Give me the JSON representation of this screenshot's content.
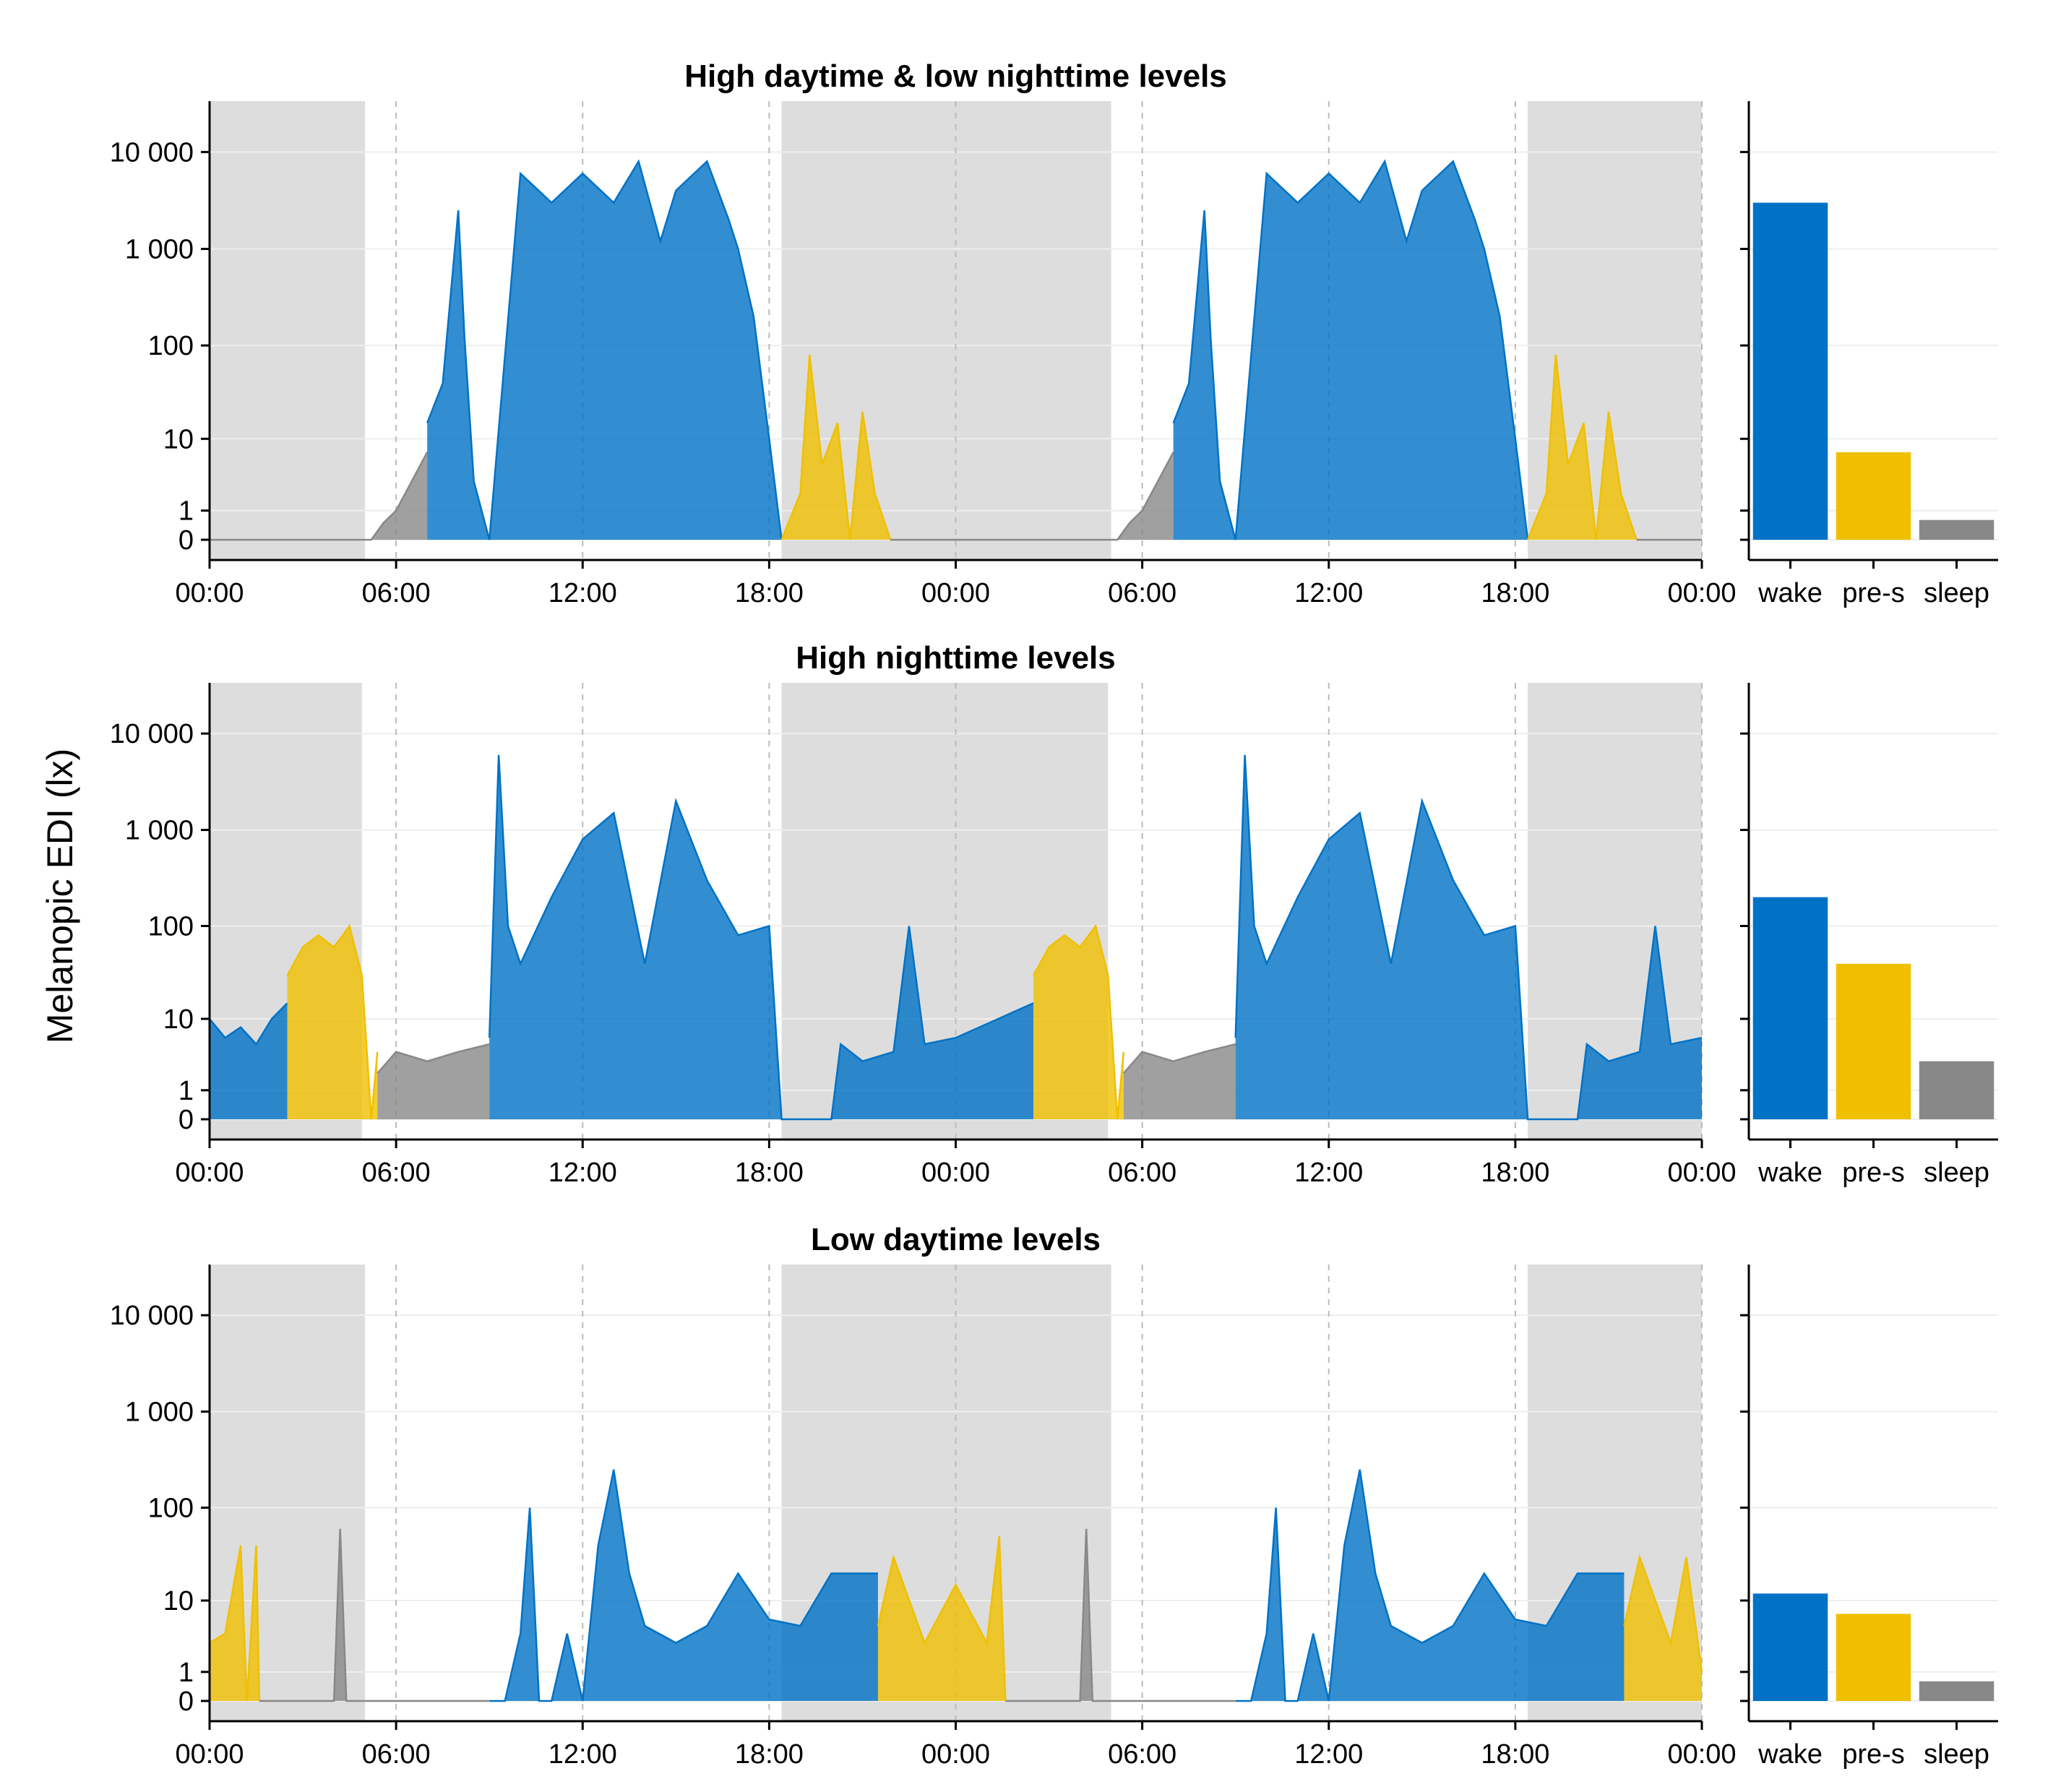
{
  "figure": {
    "ylabel": "Melanopic EDI (lx)"
  },
  "colors": {
    "wake": "#0072C6",
    "pre_sleep": "#F0C000",
    "sleep": "#888888",
    "night_shade": "#DDDDDD",
    "gridline": "#EEEEEE",
    "dashed_gridline": "#BBBBBB"
  },
  "chart_data": [
    {
      "type": "area",
      "title": "High daytime & low nighttime levels",
      "scale": "symlog",
      "xlabel": "",
      "ylabel": "",
      "x_unit": "hours",
      "xlim": [
        0,
        48
      ],
      "x_ticks": [
        0,
        6,
        12,
        18,
        24,
        30,
        36,
        42,
        48
      ],
      "x_tick_labels": [
        "00:00",
        "06:00",
        "12:00",
        "18:00",
        "00:00",
        "06:00",
        "12:00",
        "18:00",
        "00:00"
      ],
      "y_ticks": [
        0,
        1,
        10,
        100,
        1000,
        10000
      ],
      "y_tick_labels": [
        "0",
        "1",
        "10",
        "100",
        "1 000",
        "10 000"
      ],
      "night_periods": [
        [
          0,
          5
        ],
        [
          18.4,
          29
        ],
        [
          42.4,
          48
        ]
      ],
      "series": [
        {
          "state": "sleep",
          "x": [
            0,
            5.2,
            5.6,
            6.0,
            6.5,
            7.0
          ],
          "values": [
            0,
            0,
            0.5,
            1,
            3,
            7
          ]
        },
        {
          "state": "wake",
          "x": [
            7.0,
            7.5,
            8.0,
            8.2,
            8.5,
            9.0,
            10,
            11,
            12,
            13,
            13.8,
            14.5,
            15,
            16,
            16.7,
            17,
            17.5,
            18.0,
            18.4
          ],
          "values": [
            15,
            40,
            2500,
            120,
            3,
            0,
            6000,
            3000,
            6000,
            3000,
            8000,
            1200,
            4000,
            8000,
            2000,
            1000,
            200,
            10,
            0
          ]
        },
        {
          "state": "pre-sleep",
          "x": [
            18.4,
            19.0,
            19.3,
            19.7,
            20.2,
            20.6,
            21.0,
            21.4,
            21.9
          ],
          "values": [
            0,
            2,
            80,
            5,
            15,
            0,
            20,
            2,
            0
          ]
        },
        {
          "state": "sleep",
          "x": [
            21.9,
            29.2,
            29.6,
            30.0,
            30.5,
            31.0
          ],
          "values": [
            0,
            0,
            0.5,
            1,
            3,
            7
          ]
        },
        {
          "state": "wake",
          "x": [
            31.0,
            31.5,
            32.0,
            32.2,
            32.5,
            33.0,
            34,
            35,
            36,
            37,
            37.8,
            38.5,
            39,
            40,
            40.7,
            41,
            41.5,
            42.0,
            42.4
          ],
          "values": [
            15,
            40,
            2500,
            120,
            3,
            0,
            6000,
            3000,
            6000,
            3000,
            8000,
            1200,
            4000,
            8000,
            2000,
            1000,
            200,
            10,
            0
          ]
        },
        {
          "state": "pre-sleep",
          "x": [
            42.4,
            43.0,
            43.3,
            43.7,
            44.2,
            44.6,
            45.0,
            45.4,
            45.9
          ],
          "values": [
            0,
            2,
            80,
            5,
            15,
            0,
            20,
            2,
            0
          ]
        },
        {
          "state": "sleep",
          "x": [
            45.9,
            48
          ],
          "values": [
            0,
            0
          ]
        }
      ],
      "summary": {
        "categories": [
          "wake",
          "pre-s",
          "sleep"
        ],
        "values": [
          3000,
          7,
          0.6
        ]
      }
    },
    {
      "type": "area",
      "title": "High nighttime levels",
      "scale": "symlog",
      "xlabel": "",
      "ylabel": "",
      "x_unit": "hours",
      "xlim": [
        0,
        48
      ],
      "x_ticks": [
        0,
        6,
        12,
        18,
        24,
        30,
        36,
        42,
        48
      ],
      "x_tick_labels": [
        "00:00",
        "06:00",
        "12:00",
        "18:00",
        "00:00",
        "06:00",
        "12:00",
        "18:00",
        "00:00"
      ],
      "y_ticks": [
        0,
        1,
        10,
        100,
        1000,
        10000
      ],
      "y_tick_labels": [
        "0",
        "1",
        "10",
        "100",
        "1 000",
        "10 000"
      ],
      "night_periods": [
        [
          0,
          4.9
        ],
        [
          18.4,
          28.9
        ],
        [
          42.4,
          48
        ]
      ],
      "series": [
        {
          "state": "wake",
          "x": [
            0,
            0.5,
            1.0,
            1.5,
            2.0,
            2.5
          ],
          "values": [
            10,
            6,
            8,
            5,
            10,
            15
          ]
        },
        {
          "state": "pre-sleep",
          "x": [
            2.5,
            3.0,
            3.5,
            4.0,
            4.5,
            4.9,
            5.2,
            5.4
          ],
          "values": [
            30,
            60,
            80,
            60,
            100,
            30,
            0,
            4
          ]
        },
        {
          "state": "sleep",
          "x": [
            5.4,
            6,
            7,
            8,
            9.0
          ],
          "values": [
            2,
            4,
            3,
            4,
            5
          ]
        },
        {
          "state": "wake",
          "x": [
            9.0,
            9.3,
            9.6,
            10,
            11,
            12,
            13,
            14,
            15,
            16,
            17,
            18,
            18.4,
            19.0,
            20.0,
            20.3,
            21,
            22,
            22.5,
            23,
            24,
            26.5
          ],
          "values": [
            6,
            6000,
            100,
            40,
            200,
            800,
            1500,
            40,
            2000,
            300,
            80,
            100,
            0,
            0,
            0,
            5,
            3,
            4,
            100,
            5,
            6,
            15
          ]
        },
        {
          "state": "pre-sleep",
          "x": [
            26.5,
            27.0,
            27.5,
            28.0,
            28.5,
            28.9,
            29.2,
            29.4
          ],
          "values": [
            30,
            60,
            80,
            60,
            100,
            30,
            0,
            4
          ]
        },
        {
          "state": "sleep",
          "x": [
            29.4,
            30,
            31,
            32,
            33.0
          ],
          "values": [
            2,
            4,
            3,
            4,
            5
          ]
        },
        {
          "state": "wake",
          "x": [
            33.0,
            33.3,
            33.6,
            34,
            35,
            36,
            37,
            38,
            39,
            40,
            41,
            42,
            42.4,
            43.0,
            44.0,
            44.3,
            45,
            46,
            46.5,
            47,
            48
          ],
          "values": [
            6,
            6000,
            100,
            40,
            200,
            800,
            1500,
            40,
            2000,
            300,
            80,
            100,
            0,
            0,
            0,
            5,
            3,
            4,
            100,
            5,
            6
          ]
        }
      ],
      "summary": {
        "categories": [
          "wake",
          "pre-s",
          "sleep"
        ],
        "values": [
          200,
          40,
          3
        ]
      }
    },
    {
      "type": "area",
      "title": "Low daytime levels",
      "scale": "symlog",
      "xlabel": "",
      "ylabel": "",
      "x_unit": "hours",
      "xlim": [
        0,
        48
      ],
      "x_ticks": [
        0,
        6,
        12,
        18,
        24,
        30,
        36,
        42,
        48
      ],
      "x_tick_labels": [
        "00:00",
        "06:00",
        "12:00",
        "18:00",
        "00:00",
        "06:00",
        "12:00",
        "18:00",
        "00:00"
      ],
      "y_ticks": [
        0,
        1,
        10,
        100,
        1000,
        10000
      ],
      "y_tick_labels": [
        "0",
        "1",
        "10",
        "100",
        "1 000",
        "10 000"
      ],
      "night_periods": [
        [
          0,
          5
        ],
        [
          18.4,
          29
        ],
        [
          42.4,
          48
        ]
      ],
      "series": [
        {
          "state": "pre-sleep",
          "x": [
            0,
            0.5,
            1.0,
            1.2,
            1.5,
            1.6
          ],
          "values": [
            3,
            4,
            40,
            0,
            40,
            0
          ]
        },
        {
          "state": "sleep",
          "x": [
            1.6,
            4.0,
            4.2,
            4.4,
            9.0
          ],
          "values": [
            0,
            0,
            60,
            0,
            0
          ]
        },
        {
          "state": "wake",
          "x": [
            9.0,
            9.5,
            10.0,
            10.3,
            10.6,
            11.0,
            11.5,
            12.0,
            12.5,
            13.0,
            13.5,
            14.0,
            15.0,
            16.0,
            17.0,
            18.0,
            19.0,
            20.0,
            21.5
          ],
          "values": [
            0,
            0,
            4,
            100,
            0,
            0,
            4,
            0,
            40,
            250,
            20,
            5,
            3,
            5,
            20,
            6,
            5,
            20,
            20
          ]
        },
        {
          "state": "pre-sleep",
          "x": [
            21.5,
            22,
            23,
            24,
            25,
            25.4,
            25.6
          ],
          "values": [
            5,
            30,
            3,
            15,
            3,
            50,
            0
          ]
        },
        {
          "state": "sleep",
          "x": [
            25.6,
            28.0,
            28.2,
            28.4,
            33.0
          ],
          "values": [
            0,
            0,
            60,
            0,
            0
          ]
        },
        {
          "state": "wake",
          "x": [
            33.0,
            33.5,
            34.0,
            34.3,
            34.6,
            35.0,
            35.5,
            36.0,
            36.5,
            37.0,
            37.5,
            38.0,
            39.0,
            40.0,
            41.0,
            42.0,
            43.0,
            44.0,
            45.5
          ],
          "values": [
            0,
            0,
            4,
            100,
            0,
            0,
            4,
            0,
            40,
            250,
            20,
            5,
            3,
            5,
            20,
            6,
            5,
            20,
            20
          ]
        },
        {
          "state": "pre-sleep",
          "x": [
            45.5,
            46,
            47,
            47.5,
            48
          ],
          "values": [
            5,
            30,
            3,
            30,
            1
          ]
        }
      ],
      "summary": {
        "categories": [
          "wake",
          "pre-s",
          "sleep"
        ],
        "values": [
          12,
          7,
          0.6
        ]
      }
    }
  ]
}
